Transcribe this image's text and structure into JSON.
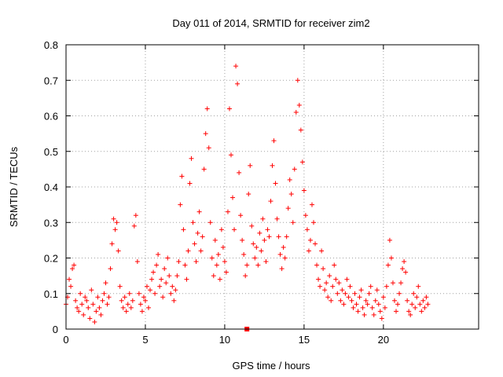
{
  "chart_data": {
    "type": "scatter",
    "title": "Day 011 of 2014, SRMTID for receiver zim2",
    "xlabel": "GPS time / hours",
    "ylabel": "SRMTID / TECUs",
    "xlim": [
      0,
      26
    ],
    "ylim": [
      0,
      0.8
    ],
    "xticks": [
      0,
      5,
      10,
      15,
      20
    ],
    "xtick_labels": [
      "0",
      "5",
      "10",
      "15",
      "20"
    ],
    "yticks": [
      0,
      0.1,
      0.2,
      0.3,
      0.4,
      0.5,
      0.6,
      0.7,
      0.8
    ],
    "ytick_labels": [
      "0",
      "0.1",
      "0.2",
      "0.3",
      "0.4",
      "0.5",
      "0.6",
      "0.7",
      "0.8"
    ],
    "grid": true,
    "marker": "+",
    "color": "#ff0000",
    "data_end_hours": 22.8,
    "series": [
      {
        "name": "SRMTID zim2",
        "points": [
          [
            0.0,
            0.07
          ],
          [
            0.1,
            0.09
          ],
          [
            0.2,
            0.14
          ],
          [
            0.3,
            0.12
          ],
          [
            0.4,
            0.17
          ],
          [
            0.5,
            0.18
          ],
          [
            0.6,
            0.08
          ],
          [
            0.7,
            0.06
          ],
          [
            0.8,
            0.05
          ],
          [
            0.9,
            0.1
          ],
          [
            1.0,
            0.07
          ],
          [
            1.1,
            0.04
          ],
          [
            1.2,
            0.09
          ],
          [
            1.3,
            0.08
          ],
          [
            1.4,
            0.06
          ],
          [
            1.5,
            0.03
          ],
          [
            1.6,
            0.11
          ],
          [
            1.7,
            0.07
          ],
          [
            1.8,
            0.02
          ],
          [
            1.9,
            0.05
          ],
          [
            2.0,
            0.09
          ],
          [
            2.1,
            0.06
          ],
          [
            2.2,
            0.04
          ],
          [
            2.3,
            0.08
          ],
          [
            2.4,
            0.1
          ],
          [
            2.5,
            0.13
          ],
          [
            2.6,
            0.07
          ],
          [
            2.7,
            0.09
          ],
          [
            2.8,
            0.17
          ],
          [
            2.9,
            0.24
          ],
          [
            3.0,
            0.31
          ],
          [
            3.1,
            0.28
          ],
          [
            3.2,
            0.3
          ],
          [
            3.3,
            0.22
          ],
          [
            3.4,
            0.12
          ],
          [
            3.5,
            0.08
          ],
          [
            3.6,
            0.06
          ],
          [
            3.7,
            0.09
          ],
          [
            3.8,
            0.05
          ],
          [
            3.9,
            0.07
          ],
          [
            4.0,
            0.1
          ],
          [
            4.1,
            0.06
          ],
          [
            4.2,
            0.08
          ],
          [
            4.3,
            0.29
          ],
          [
            4.4,
            0.32
          ],
          [
            4.5,
            0.19
          ],
          [
            4.6,
            0.1
          ],
          [
            4.7,
            0.07
          ],
          [
            4.8,
            0.05
          ],
          [
            4.9,
            0.09
          ],
          [
            5.0,
            0.08
          ],
          [
            5.1,
            0.12
          ],
          [
            5.2,
            0.06
          ],
          [
            5.3,
            0.11
          ],
          [
            5.4,
            0.14
          ],
          [
            5.5,
            0.16
          ],
          [
            5.6,
            0.1
          ],
          [
            5.7,
            0.18
          ],
          [
            5.8,
            0.21
          ],
          [
            5.9,
            0.12
          ],
          [
            6.0,
            0.14
          ],
          [
            6.1,
            0.09
          ],
          [
            6.2,
            0.17
          ],
          [
            6.3,
            0.13
          ],
          [
            6.4,
            0.2
          ],
          [
            6.5,
            0.15
          ],
          [
            6.6,
            0.1
          ],
          [
            6.7,
            0.12
          ],
          [
            6.8,
            0.08
          ],
          [
            6.9,
            0.11
          ],
          [
            7.0,
            0.15
          ],
          [
            7.1,
            0.19
          ],
          [
            7.2,
            0.35
          ],
          [
            7.3,
            0.43
          ],
          [
            7.4,
            0.28
          ],
          [
            7.5,
            0.18
          ],
          [
            7.6,
            0.14
          ],
          [
            7.7,
            0.22
          ],
          [
            7.8,
            0.41
          ],
          [
            7.9,
            0.48
          ],
          [
            8.0,
            0.3
          ],
          [
            8.1,
            0.24
          ],
          [
            8.2,
            0.19
          ],
          [
            8.3,
            0.27
          ],
          [
            8.4,
            0.33
          ],
          [
            8.5,
            0.22
          ],
          [
            8.6,
            0.26
          ],
          [
            8.7,
            0.45
          ],
          [
            8.8,
            0.55
          ],
          [
            8.9,
            0.62
          ],
          [
            9.0,
            0.51
          ],
          [
            9.1,
            0.3
          ],
          [
            9.2,
            0.2
          ],
          [
            9.3,
            0.15
          ],
          [
            9.4,
            0.25
          ],
          [
            9.5,
            0.18
          ],
          [
            9.6,
            0.21
          ],
          [
            9.7,
            0.14
          ],
          [
            9.8,
            0.28
          ],
          [
            9.9,
            0.23
          ],
          [
            10.0,
            0.19
          ],
          [
            10.1,
            0.16
          ],
          [
            10.2,
            0.33
          ],
          [
            10.3,
            0.62
          ],
          [
            10.4,
            0.49
          ],
          [
            10.5,
            0.37
          ],
          [
            10.6,
            0.28
          ],
          [
            10.7,
            0.74
          ],
          [
            10.8,
            0.69
          ],
          [
            10.9,
            0.44
          ],
          [
            11.0,
            0.32
          ],
          [
            11.1,
            0.25
          ],
          [
            11.2,
            0.21
          ],
          [
            11.3,
            0.15
          ],
          [
            11.4,
            0.18
          ],
          [
            11.5,
            0.38
          ],
          [
            11.6,
            0.46
          ],
          [
            11.7,
            0.29
          ],
          [
            11.8,
            0.24
          ],
          [
            11.9,
            0.2
          ],
          [
            12.0,
            0.23
          ],
          [
            12.1,
            0.18
          ],
          [
            12.2,
            0.27
          ],
          [
            12.3,
            0.22
          ],
          [
            12.4,
            0.31
          ],
          [
            12.5,
            0.25
          ],
          [
            12.6,
            0.19
          ],
          [
            12.7,
            0.28
          ],
          [
            12.8,
            0.26
          ],
          [
            12.9,
            0.36
          ],
          [
            13.0,
            0.46
          ],
          [
            13.1,
            0.53
          ],
          [
            13.2,
            0.41
          ],
          [
            13.3,
            0.31
          ],
          [
            13.4,
            0.26
          ],
          [
            13.5,
            0.21
          ],
          [
            13.6,
            0.17
          ],
          [
            13.7,
            0.23
          ],
          [
            13.8,
            0.2
          ],
          [
            13.9,
            0.26
          ],
          [
            14.0,
            0.34
          ],
          [
            14.1,
            0.42
          ],
          [
            14.2,
            0.38
          ],
          [
            14.3,
            0.3
          ],
          [
            14.4,
            0.45
          ],
          [
            14.5,
            0.61
          ],
          [
            14.6,
            0.7
          ],
          [
            14.7,
            0.63
          ],
          [
            14.8,
            0.56
          ],
          [
            14.9,
            0.47
          ],
          [
            15.0,
            0.39
          ],
          [
            15.1,
            0.32
          ],
          [
            15.2,
            0.28
          ],
          [
            15.3,
            0.22
          ],
          [
            15.4,
            0.25
          ],
          [
            15.5,
            0.35
          ],
          [
            15.6,
            0.3
          ],
          [
            15.7,
            0.24
          ],
          [
            15.8,
            0.18
          ],
          [
            15.9,
            0.14
          ],
          [
            16.0,
            0.12
          ],
          [
            16.1,
            0.22
          ],
          [
            16.2,
            0.17
          ],
          [
            16.3,
            0.11
          ],
          [
            16.4,
            0.13
          ],
          [
            16.5,
            0.09
          ],
          [
            16.6,
            0.15
          ],
          [
            16.7,
            0.08
          ],
          [
            16.8,
            0.12
          ],
          [
            16.9,
            0.18
          ],
          [
            17.0,
            0.14
          ],
          [
            17.1,
            0.1
          ],
          [
            17.2,
            0.13
          ],
          [
            17.3,
            0.08
          ],
          [
            17.4,
            0.11
          ],
          [
            17.5,
            0.07
          ],
          [
            17.6,
            0.1
          ],
          [
            17.7,
            0.14
          ],
          [
            17.8,
            0.09
          ],
          [
            17.9,
            0.12
          ],
          [
            18.0,
            0.08
          ],
          [
            18.1,
            0.06
          ],
          [
            18.2,
            0.1
          ],
          [
            18.3,
            0.07
          ],
          [
            18.4,
            0.05
          ],
          [
            18.5,
            0.09
          ],
          [
            18.6,
            0.11
          ],
          [
            18.7,
            0.06
          ],
          [
            18.8,
            0.04
          ],
          [
            18.9,
            0.08
          ],
          [
            19.0,
            0.07
          ],
          [
            19.1,
            0.1
          ],
          [
            19.2,
            0.12
          ],
          [
            19.3,
            0.06
          ],
          [
            19.4,
            0.04
          ],
          [
            19.5,
            0.08
          ],
          [
            19.6,
            0.11
          ],
          [
            19.7,
            0.07
          ],
          [
            19.8,
            0.05
          ],
          [
            19.9,
            0.03
          ],
          [
            20.0,
            0.09
          ],
          [
            20.1,
            0.06
          ],
          [
            20.2,
            0.12
          ],
          [
            20.3,
            0.18
          ],
          [
            20.4,
            0.25
          ],
          [
            20.5,
            0.2
          ],
          [
            20.6,
            0.13
          ],
          [
            20.7,
            0.08
          ],
          [
            20.8,
            0.05
          ],
          [
            20.9,
            0.07
          ],
          [
            21.0,
            0.1
          ],
          [
            21.1,
            0.13
          ],
          [
            21.2,
            0.17
          ],
          [
            21.3,
            0.19
          ],
          [
            21.4,
            0.16
          ],
          [
            21.5,
            0.08
          ],
          [
            21.6,
            0.05
          ],
          [
            21.7,
            0.04
          ],
          [
            21.8,
            0.07
          ],
          [
            21.9,
            0.1
          ],
          [
            22.0,
            0.06
          ],
          [
            22.1,
            0.09
          ],
          [
            22.2,
            0.12
          ],
          [
            22.3,
            0.07
          ],
          [
            22.4,
            0.05
          ],
          [
            22.5,
            0.08
          ],
          [
            22.6,
            0.06
          ],
          [
            22.7,
            0.09
          ],
          [
            22.8,
            0.07
          ]
        ]
      }
    ],
    "outlier_square": [
      11.4,
      0.0
    ]
  }
}
